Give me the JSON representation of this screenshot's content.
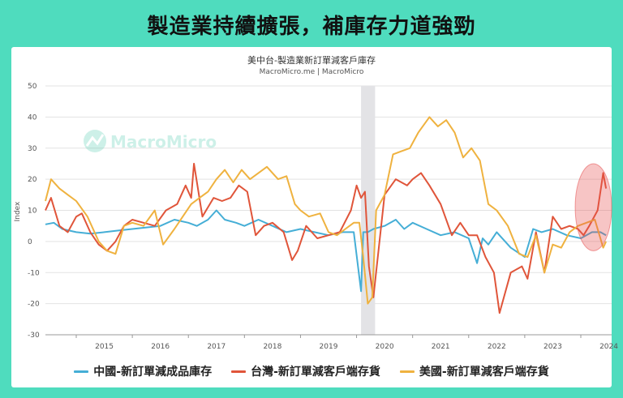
{
  "banner": {
    "title": "製造業持續擴張，補庫存力道強勁"
  },
  "brand": {
    "watermark": "MacroMicro"
  },
  "chart_data": {
    "type": "line",
    "title": "美中台-製造業新訂單減客戶庫存",
    "subtitle": "MacroMicro.me | MacroMicro",
    "ylabel": "Index",
    "ylim": [
      -30,
      50
    ],
    "yticks": [
      -30,
      -20,
      -10,
      0,
      10,
      20,
      30,
      40,
      50
    ],
    "xlim": [
      2014.45,
      2024.55
    ],
    "xticks": [
      "2015",
      "2016",
      "2017",
      "2018",
      "2019",
      "2020",
      "2021",
      "2022",
      "2023",
      "2024"
    ],
    "grid": true,
    "shaded_period": [
      2020.08,
      2020.33
    ],
    "highlight_region": {
      "x": [
        2023.9,
        2024.55
      ],
      "y": [
        -3,
        25
      ]
    },
    "series": [
      {
        "name": "中國-新訂單減成品庫存",
        "color": "#45aed6",
        "x": [
          2014.45,
          2014.6,
          2014.75,
          2015.0,
          2015.25,
          2015.5,
          2015.75,
          2016.0,
          2016.25,
          2016.5,
          2016.75,
          2017.0,
          2017.15,
          2017.35,
          2017.5,
          2017.65,
          2017.85,
          2018.0,
          2018.25,
          2018.5,
          2018.75,
          2019.0,
          2019.25,
          2019.5,
          2019.75,
          2019.95,
          2020.08,
          2020.12,
          2020.2,
          2020.3,
          2020.5,
          2020.7,
          2020.85,
          2021.0,
          2021.25,
          2021.5,
          2021.75,
          2022.0,
          2022.15,
          2022.25,
          2022.35,
          2022.5,
          2022.75,
          2023.0,
          2023.15,
          2023.3,
          2023.5,
          2023.75,
          2024.0,
          2024.2,
          2024.35,
          2024.45
        ],
        "values": [
          5.5,
          6,
          4,
          3,
          2.5,
          3,
          3.5,
          4,
          4.5,
          5,
          7,
          6,
          5,
          7,
          10,
          7,
          6,
          5,
          7,
          5,
          3,
          4,
          3,
          2,
          3,
          3,
          -16,
          3,
          3,
          4,
          5,
          7,
          4,
          6,
          4,
          2,
          3,
          1,
          -7,
          1,
          -1,
          3,
          -2,
          -5,
          4,
          3,
          4,
          2,
          1,
          3,
          3,
          2
        ]
      },
      {
        "name": "台灣-新訂單減客戶端存貨",
        "color": "#e0553a",
        "x": [
          2014.45,
          2014.55,
          2014.7,
          2014.85,
          2015.0,
          2015.1,
          2015.25,
          2015.4,
          2015.55,
          2015.7,
          2015.85,
          2016.0,
          2016.2,
          2016.4,
          2016.6,
          2016.8,
          2016.95,
          2017.05,
          2017.1,
          2017.25,
          2017.45,
          2017.6,
          2017.75,
          2017.9,
          2018.05,
          2018.2,
          2018.35,
          2018.5,
          2018.7,
          2018.85,
          2018.95,
          2019.1,
          2019.3,
          2019.5,
          2019.7,
          2019.9,
          2020.0,
          2020.08,
          2020.15,
          2020.22,
          2020.3,
          2020.5,
          2020.7,
          2020.9,
          2021.0,
          2021.15,
          2021.3,
          2021.5,
          2021.7,
          2021.85,
          2022.0,
          2022.15,
          2022.3,
          2022.45,
          2022.55,
          2022.75,
          2022.95,
          2023.05,
          2023.2,
          2023.35,
          2023.5,
          2023.65,
          2023.8,
          2023.95,
          2024.05,
          2024.15,
          2024.3,
          2024.4,
          2024.45
        ],
        "values": [
          10,
          14,
          5,
          3,
          8,
          9,
          3,
          -1,
          -3,
          0,
          5,
          7,
          6,
          5,
          10,
          12,
          18,
          14,
          25,
          8,
          14,
          13,
          14,
          18,
          16,
          2,
          5,
          6,
          3,
          -6,
          -3,
          5,
          1,
          2,
          3,
          10,
          18,
          14,
          16,
          -8,
          -18,
          15,
          20,
          18,
          20,
          22,
          18,
          12,
          2,
          6,
          2,
          2,
          -5,
          -10,
          -23,
          -10,
          -8,
          -12,
          3,
          -10,
          8,
          4,
          5,
          4,
          2,
          5,
          10,
          22,
          17
        ]
      },
      {
        "name": "美國-新訂單減客戶端存貨",
        "color": "#efb23f",
        "x": [
          2014.45,
          2014.55,
          2014.7,
          2014.85,
          2015.0,
          2015.2,
          2015.4,
          2015.55,
          2015.7,
          2015.85,
          2016.0,
          2016.2,
          2016.4,
          2016.55,
          2016.75,
          2016.9,
          2017.05,
          2017.2,
          2017.35,
          2017.5,
          2017.65,
          2017.8,
          2017.95,
          2018.1,
          2018.25,
          2018.4,
          2018.6,
          2018.75,
          2018.9,
          2019.0,
          2019.15,
          2019.35,
          2019.5,
          2019.65,
          2019.8,
          2019.95,
          2020.05,
          2020.12,
          2020.2,
          2020.28,
          2020.35,
          2020.5,
          2020.65,
          2020.8,
          2020.95,
          2021.1,
          2021.3,
          2021.45,
          2021.6,
          2021.75,
          2021.9,
          2022.05,
          2022.2,
          2022.35,
          2022.5,
          2022.7,
          2022.9,
          2023.05,
          2023.2,
          2023.35,
          2023.5,
          2023.65,
          2023.8,
          2023.95,
          2024.1,
          2024.25,
          2024.4,
          2024.45
        ],
        "values": [
          13,
          20,
          17,
          15,
          13,
          8,
          0,
          -3,
          -4,
          5,
          6,
          5,
          10,
          -1,
          4,
          8,
          12,
          14,
          16,
          20,
          23,
          19,
          23,
          20,
          22,
          24,
          20,
          21,
          12,
          10,
          8,
          9,
          3,
          2,
          4,
          6,
          6,
          -5,
          -20,
          -18,
          10,
          15,
          28,
          29,
          30,
          35,
          40,
          37,
          39,
          35,
          27,
          30,
          26,
          12,
          10,
          5,
          -4,
          -5,
          2,
          -10,
          -1,
          -2,
          3,
          5,
          6,
          7,
          -2,
          0
        ]
      }
    ]
  }
}
